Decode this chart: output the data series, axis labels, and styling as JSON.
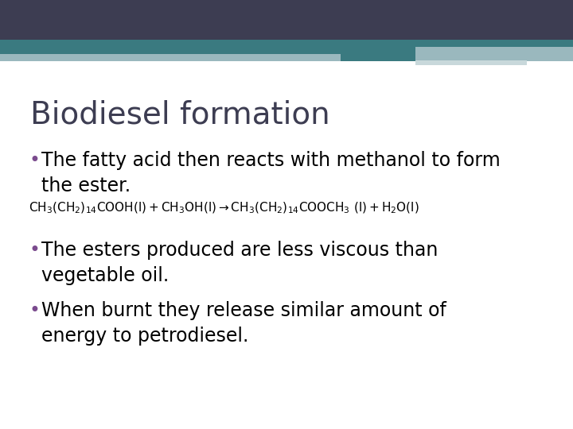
{
  "title": "Biodiesel formation",
  "bg_color": "#ffffff",
  "title_color": "#3d3d52",
  "title_fontsize": 28,
  "bullet_color": "#7B4B8E",
  "bullet_fontsize": 17,
  "equation_fontsize": 11,
  "text_color": "#000000",
  "header_bar1_color": "#3d3d52",
  "header_bar1": [
    0.0,
    0.907,
    1.0,
    0.093
  ],
  "header_bar2_color": "#3a7a80",
  "header_bar2": [
    0.0,
    0.874,
    1.0,
    0.033
  ],
  "header_bar3_color": "#9ab8be",
  "header_bar3": [
    0.0,
    0.858,
    0.595,
    0.016
  ],
  "header_bar4_color": "#3a7a80",
  "header_bar4": [
    0.595,
    0.858,
    0.13,
    0.033
  ],
  "header_bar5_color": "#9ab8be",
  "header_bar5": [
    0.725,
    0.868,
    0.275,
    0.022
  ],
  "header_bar6_color": "#c8d8db",
  "header_bar6": [
    0.725,
    0.858,
    0.19,
    0.01
  ],
  "bullets": [
    "The fatty acid then reacts with methanol to form\nthe ester.",
    "The esters produced are less viscous than\nvegetable oil.",
    "When burnt they release similar amount of\nenergy to petrodiesel."
  ]
}
